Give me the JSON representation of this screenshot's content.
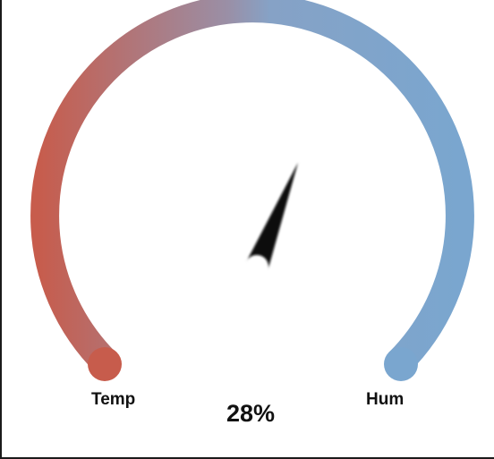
{
  "gauge": {
    "label_left": "Temp",
    "label_right": "Hum",
    "value_text": "28%",
    "needle_level": 0.58,
    "colors": {
      "start": "#c75c4c",
      "mid": "#9a8fa6",
      "end": "#7aa6cf",
      "needle": "#0a0a0a"
    },
    "icon": "gauge-needle-icon"
  }
}
